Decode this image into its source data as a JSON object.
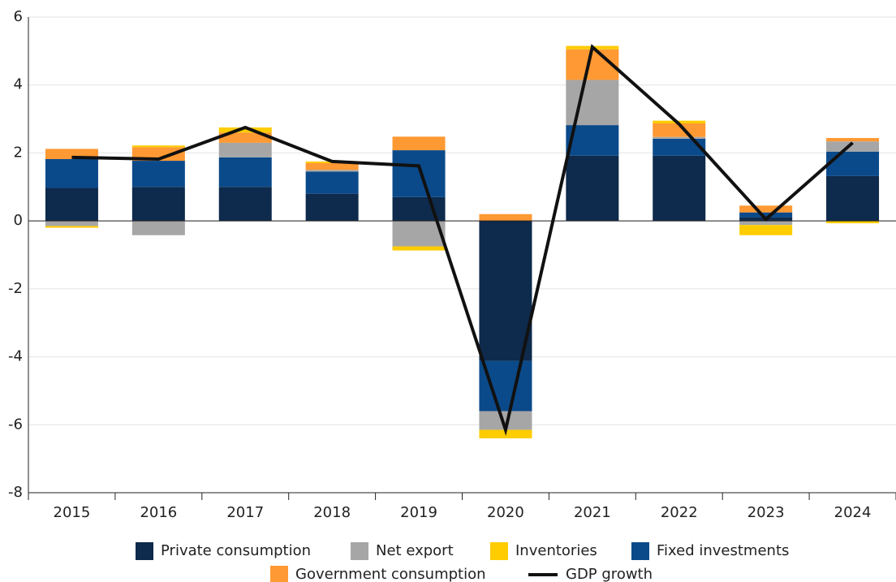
{
  "chart_data": {
    "type": "bar",
    "stacked": true,
    "categories": [
      "2015",
      "2016",
      "2017",
      "2018",
      "2019",
      "2020",
      "2021",
      "2022",
      "2023",
      "2024"
    ],
    "series": [
      {
        "name": "Private consumption",
        "color": "#0e2a4c",
        "values": [
          0.97,
          1.0,
          1.0,
          0.8,
          0.7,
          -4.12,
          1.92,
          1.92,
          0.1,
          1.32
        ]
      },
      {
        "name": "Net export",
        "color": "#a6a6a6",
        "values": [
          -0.15,
          -0.42,
          0.43,
          0.05,
          -0.75,
          -0.55,
          1.33,
          0.05,
          -0.12,
          0.3
        ]
      },
      {
        "name": "Inventories",
        "color": "#ffcc00",
        "values": [
          -0.05,
          0.05,
          0.15,
          0.05,
          -0.12,
          -0.25,
          0.1,
          0.08,
          -0.3,
          -0.07
        ]
      },
      {
        "name": "Fixed investments",
        "color": "#0b4a8a",
        "values": [
          0.85,
          0.77,
          0.87,
          0.65,
          1.38,
          -1.48,
          0.9,
          0.5,
          0.15,
          0.72
        ]
      },
      {
        "name": "Government consumption",
        "color": "#ff9933",
        "values": [
          0.3,
          0.4,
          0.3,
          0.2,
          0.4,
          0.2,
          0.9,
          0.4,
          0.2,
          0.1
        ]
      },
      {
        "name": "GDP growth",
        "color": "#111111",
        "type": "line",
        "values": [
          1.87,
          1.82,
          2.75,
          1.75,
          1.62,
          -6.15,
          5.12,
          2.85,
          0.05,
          2.3
        ]
      }
    ],
    "ylim": [
      -8,
      6
    ],
    "yticks": [
      -8,
      -6,
      -4,
      -2,
      0,
      2,
      4,
      6
    ],
    "grid": true
  }
}
